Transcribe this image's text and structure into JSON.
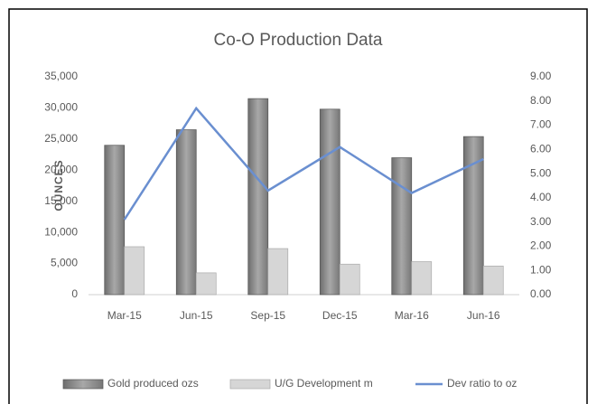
{
  "chart_data": {
    "type": "bar",
    "title": "Co-O Production Data",
    "y_label": "OUNCES",
    "categories": [
      "Mar-15",
      "Jun-15",
      "Sep-15",
      "Dec-15",
      "Mar-16",
      "Jun-16"
    ],
    "series": [
      {
        "name": "Gold produced ozs",
        "color": "#8f8f8f",
        "values": [
          24000,
          26500,
          31500,
          29800,
          22000,
          25400
        ]
      },
      {
        "name": "U/G Development m",
        "color": "#d6d6d6",
        "values": [
          7700,
          3500,
          7400,
          4900,
          5300,
          4600
        ]
      },
      {
        "name": "Dev ratio to oz",
        "color": "#6a8fd0",
        "type": "line",
        "axis": "y2",
        "values": [
          3.1,
          7.7,
          4.3,
          6.1,
          4.2,
          5.6
        ]
      }
    ],
    "ylim": [
      0,
      35000
    ],
    "yticks": [
      0,
      {
        "value": 5000,
        "label": "5,000"
      },
      {
        "value": 10000,
        "label": "10,000"
      },
      {
        "value": 15000,
        "label": "15,000"
      },
      {
        "value": 20000,
        "label": "20,000"
      },
      {
        "value": 25000,
        "label": "25,000"
      },
      {
        "value": 30000,
        "label": "30,000"
      },
      {
        "value": 35000,
        "label": "35,000"
      }
    ],
    "y2lim": [
      0,
      9
    ],
    "y2ticks": [
      {
        "value": 0,
        "label": "0.00"
      },
      {
        "value": 1,
        "label": "1.00"
      },
      {
        "value": 2,
        "label": "2.00"
      },
      {
        "value": 3,
        "label": "3.00"
      },
      {
        "value": 4,
        "label": "4.00"
      },
      {
        "value": 5,
        "label": "5.00"
      },
      {
        "value": 6,
        "label": "6.00"
      },
      {
        "value": 7,
        "label": "7.00"
      },
      {
        "value": 8,
        "label": "8.00"
      },
      {
        "value": 9,
        "label": "9.00"
      }
    ],
    "grid": false,
    "legend": "bottom"
  }
}
